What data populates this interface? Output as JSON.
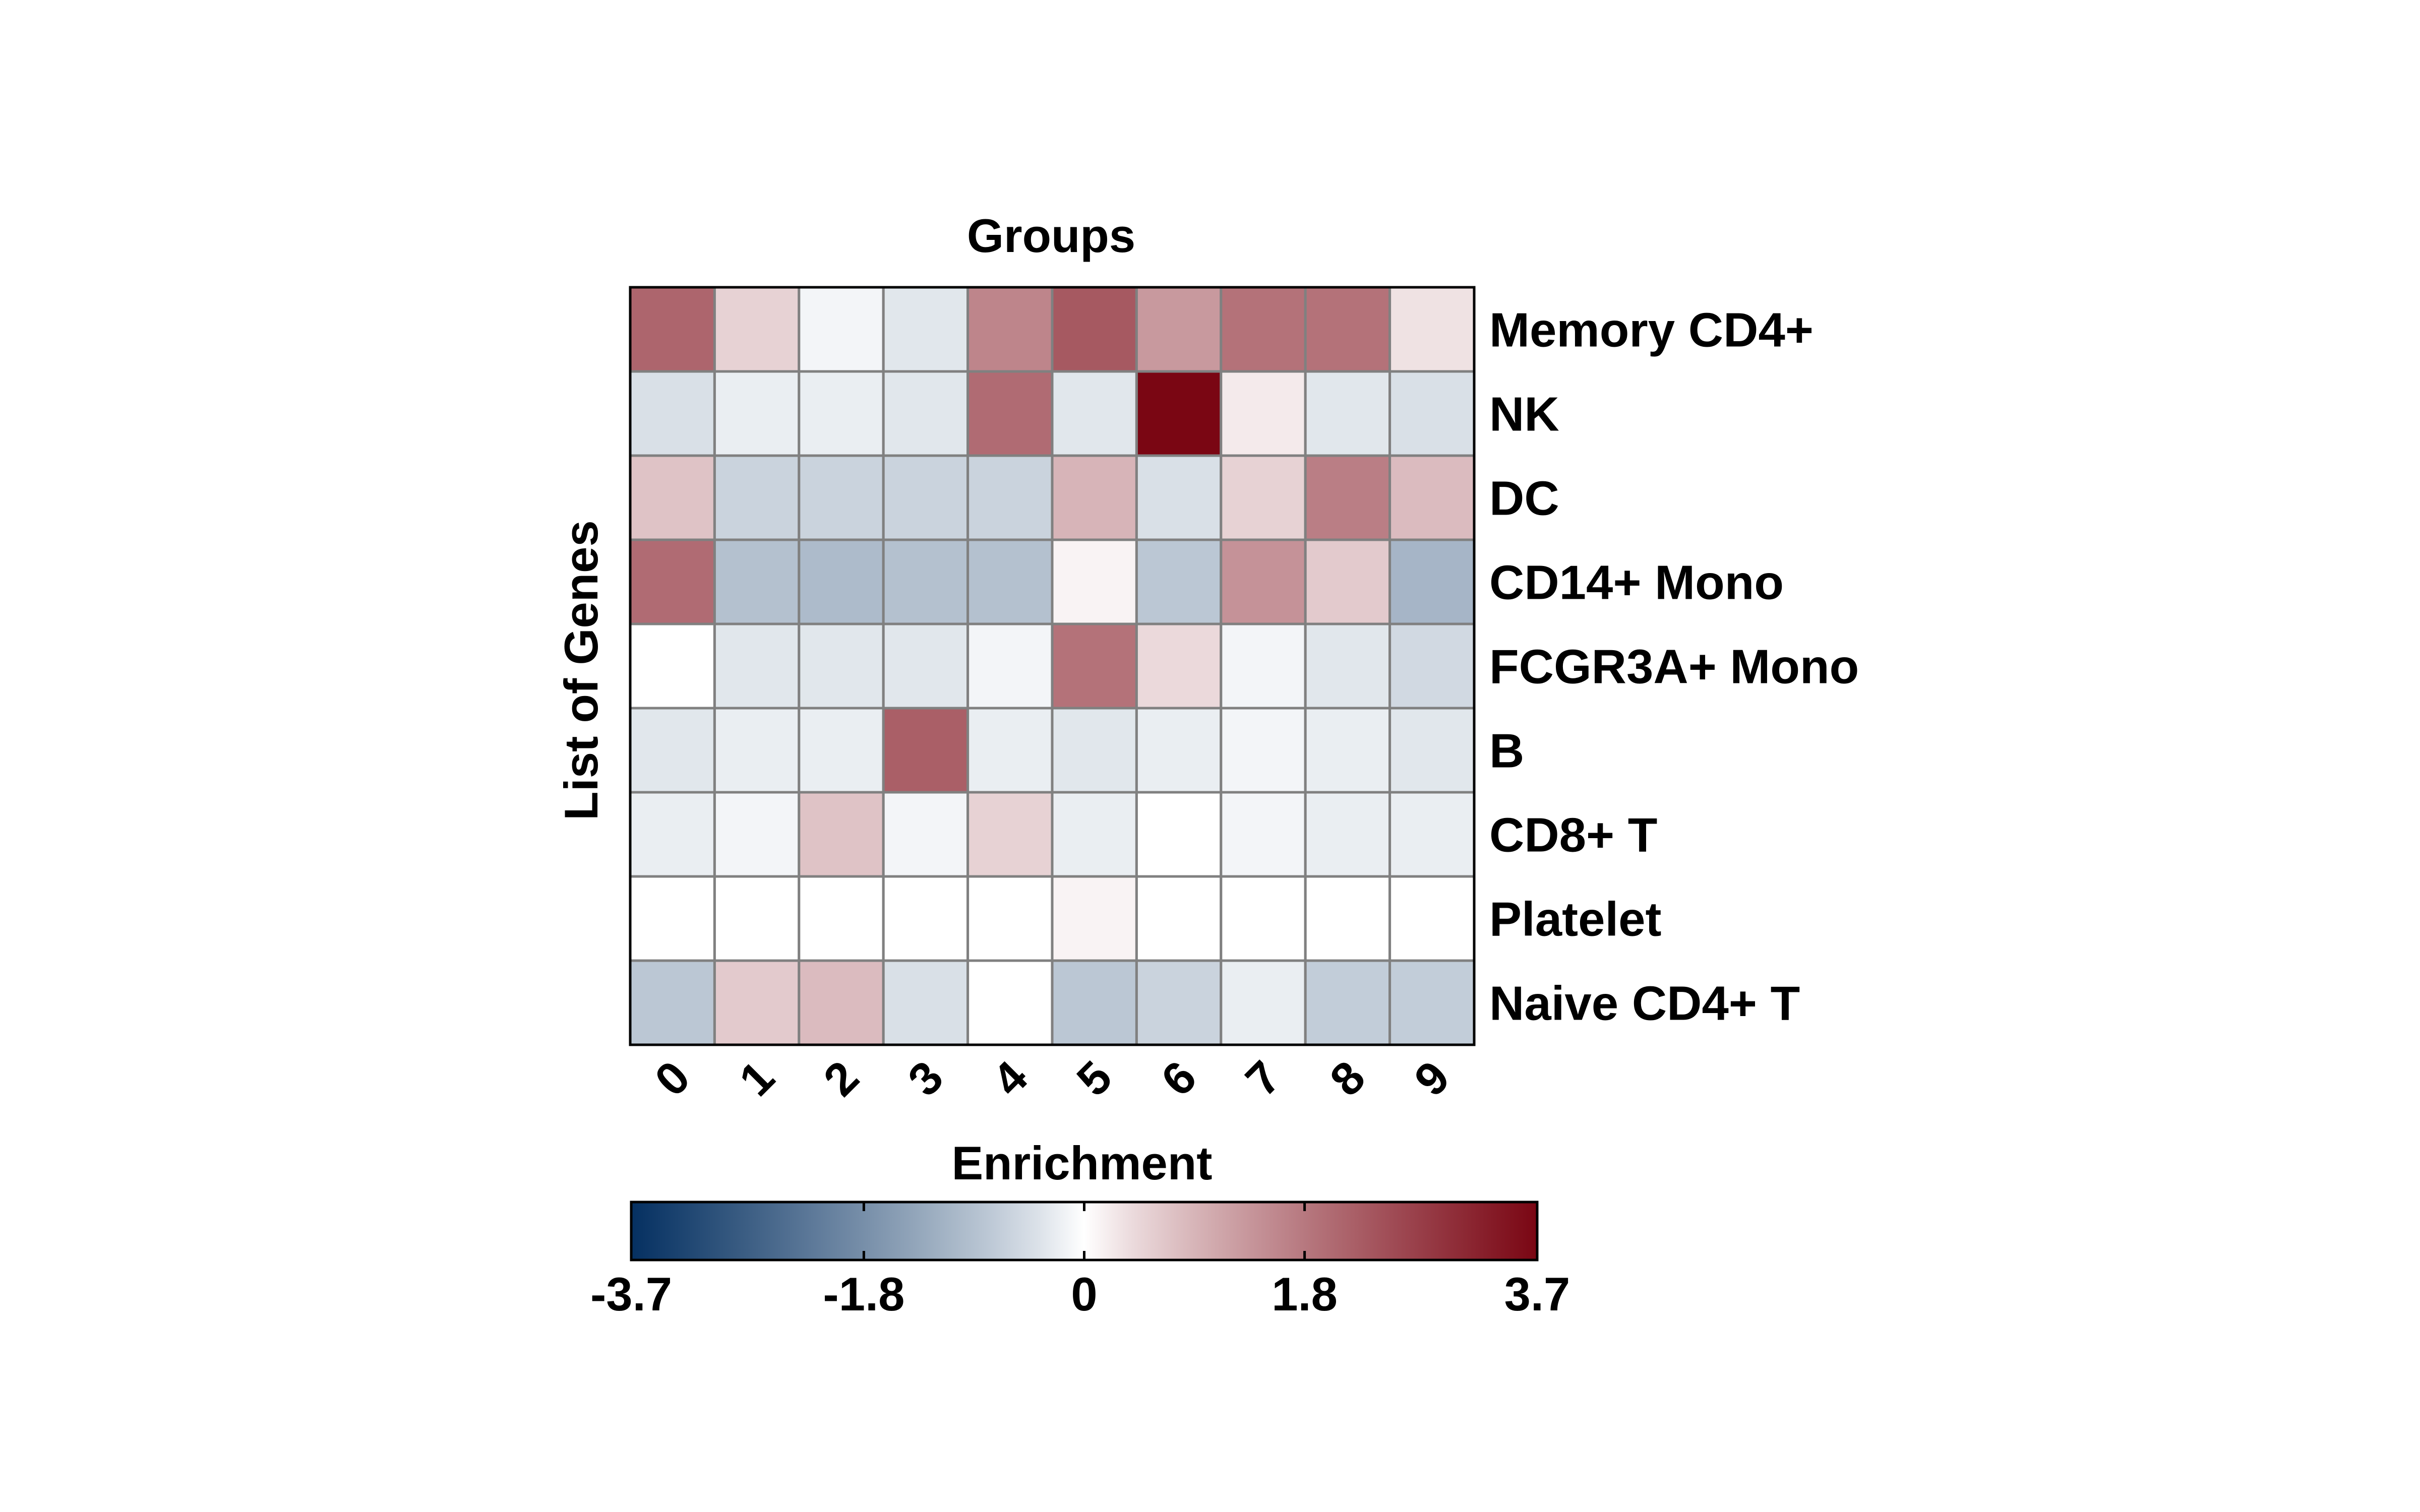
{
  "chart_data": {
    "type": "heatmap",
    "title": "Groups",
    "xlabel": "Groups",
    "ylabel": "List of Genes",
    "columns": [
      "0",
      "1",
      "2",
      "3",
      "4",
      "5",
      "6",
      "7",
      "8",
      "9"
    ],
    "rows": [
      "Memory CD4+",
      "NK",
      "DC",
      "CD14+ Mono",
      "FCGR3A+ Mono",
      "B",
      "CD8+ T",
      "Platelet",
      "Naive CD4+ T"
    ],
    "values": [
      [
        2.1,
        0.5,
        -0.1,
        -0.3,
        1.6,
        2.3,
        1.3,
        1.9,
        1.9,
        0.3
      ],
      [
        -0.4,
        -0.2,
        -0.2,
        -0.3,
        2.0,
        -0.3,
        3.7,
        0.2,
        -0.3,
        -0.4
      ],
      [
        0.7,
        -0.6,
        -0.6,
        -0.6,
        -0.6,
        0.9,
        -0.4,
        0.5,
        1.7,
        0.8
      ],
      [
        2.0,
        -0.9,
        -1.0,
        -0.9,
        -0.9,
        0.1,
        -0.8,
        1.4,
        0.6,
        -1.1
      ],
      [
        0.0,
        -0.3,
        -0.3,
        -0.3,
        -0.1,
        1.9,
        0.4,
        -0.1,
        -0.3,
        -0.5
      ],
      [
        -0.3,
        -0.2,
        -0.2,
        2.2,
        -0.2,
        -0.3,
        -0.2,
        -0.1,
        -0.2,
        -0.3
      ],
      [
        -0.2,
        -0.1,
        0.7,
        -0.1,
        0.5,
        -0.2,
        0.0,
        -0.1,
        -0.2,
        -0.2
      ],
      [
        0.0,
        0.0,
        0.0,
        0.0,
        0.0,
        0.1,
        0.0,
        0.0,
        0.0,
        0.0
      ],
      [
        -0.8,
        0.6,
        0.8,
        -0.4,
        0.0,
        -0.8,
        -0.6,
        -0.2,
        -0.7,
        -0.7
      ]
    ],
    "colorbar": {
      "title": "Enrichment",
      "min": -3.7,
      "max": 3.7,
      "ticks": [
        -3.7,
        -1.8,
        0,
        1.8,
        3.7
      ],
      "tick_labels": [
        "-3.7",
        "-1.8",
        "0",
        "1.8",
        "3.7"
      ],
      "colormap": "RdBu_r",
      "colors": {
        "low": "#053061",
        "mid": "#ffffff",
        "high": "#7a0613"
      }
    },
    "grid": true
  }
}
